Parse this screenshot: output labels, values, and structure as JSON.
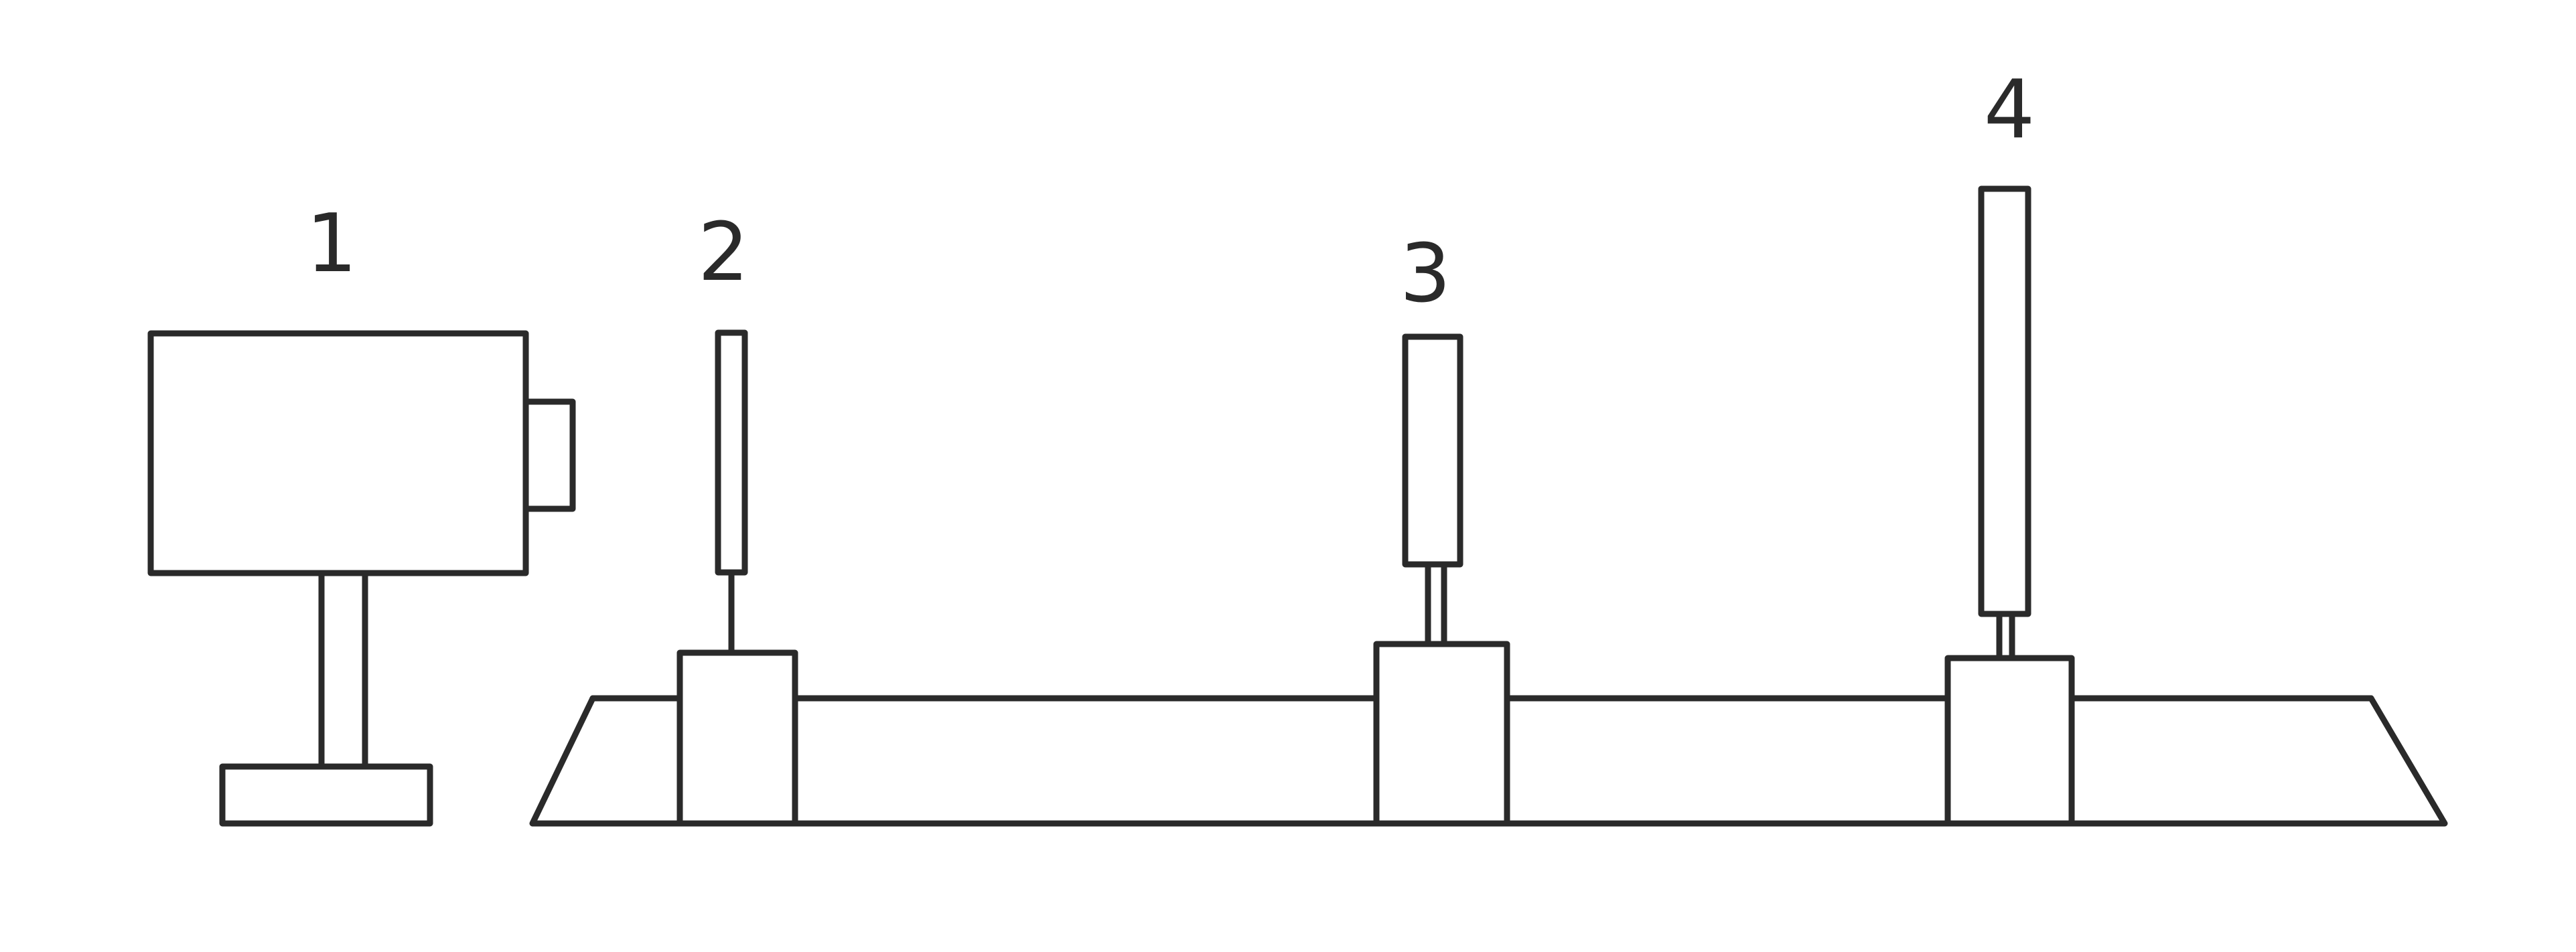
{
  "labels": {
    "projector": "1",
    "slit": "2",
    "lens": "3",
    "screen": "4"
  },
  "colors": {
    "ink": "#2a2a2a",
    "background": "#ffffff"
  }
}
